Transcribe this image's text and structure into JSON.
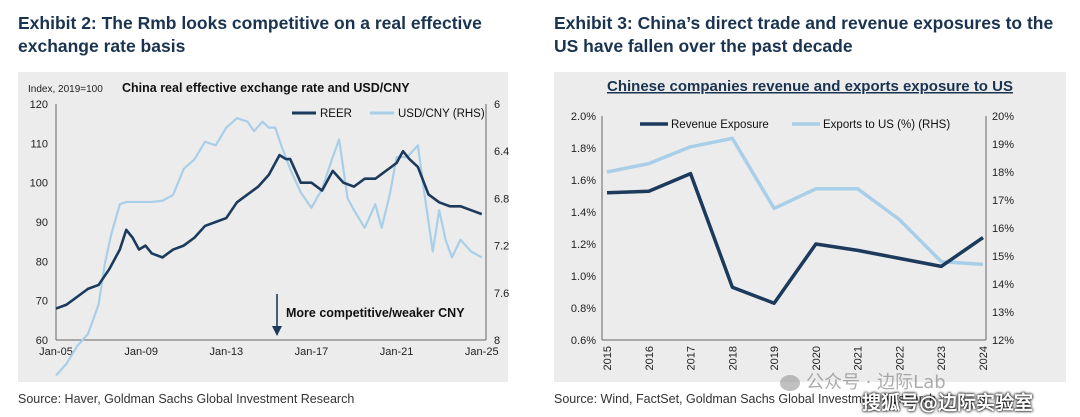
{
  "left_panel": {
    "exhibit_title": "Exhibit 2: The Rmb looks competitive on a real effective exchange rate basis",
    "source": "Source: Haver, Goldman Sachs Global Investment Research"
  },
  "right_panel": {
    "exhibit_title": "Exhibit 3: China’s direct trade and revenue exposures to the US have fallen over the past decade",
    "source": "Source: Wind, FactSet, Goldman Sachs Global Investment Research"
  },
  "watermark": {
    "text1": "公众号 · 边际Lab",
    "text2": "搜狐号@边际实验室"
  },
  "chart_data": [
    {
      "type": "line",
      "title": "China real effective exchange rate and USD/CNY",
      "ylabel": "Index, 2019=100",
      "ylim": [
        60,
        120
      ],
      "y_ticks": [
        "60",
        "70",
        "80",
        "90",
        "100",
        "110",
        "120"
      ],
      "y2lim": [
        8,
        6
      ],
      "y2_inverted": true,
      "y2_ticks": [
        "6",
        "6.4",
        "6.8",
        "7.2",
        "7.6",
        "8"
      ],
      "x_ticks": [
        "Jan-05",
        "Jan-09",
        "Jan-13",
        "Jan-17",
        "Jan-21",
        "Jan-25"
      ],
      "x_tick_values": [
        2005,
        2009,
        2013,
        2017,
        2021,
        2025
      ],
      "xlim": [
        2005,
        2025.2
      ],
      "legend_position": "top-right",
      "annotation": "More competitive/weaker CNY",
      "colors": {
        "REER": "#1b3a5c",
        "USD/CNY (RHS)": "#a9cfe8"
      },
      "series": [
        {
          "name": "REER",
          "axis": "left",
          "x": [
            2005,
            2005.5,
            2006,
            2006.5,
            2007,
            2007.5,
            2008,
            2008.3,
            2008.6,
            2008.9,
            2009.2,
            2009.5,
            2010,
            2010.5,
            2011,
            2011.5,
            2012,
            2012.5,
            2013,
            2013.5,
            2014,
            2014.5,
            2015,
            2015.5,
            2015.8,
            2016,
            2016.5,
            2017,
            2017.5,
            2018,
            2018.5,
            2019,
            2019.5,
            2020,
            2020.5,
            2021,
            2021.3,
            2021.6,
            2022,
            2022.5,
            2023,
            2023.5,
            2024,
            2024.5,
            2025
          ],
          "y": [
            68,
            69,
            71,
            73,
            74,
            78,
            83,
            88,
            86,
            83,
            84,
            82,
            81,
            83,
            84,
            86,
            89,
            90,
            91,
            95,
            97,
            99,
            102,
            107,
            106,
            106,
            100,
            100,
            98,
            103,
            100,
            99,
            101,
            101,
            103,
            105,
            108,
            106,
            104,
            97,
            95,
            94,
            94,
            93,
            92
          ]
        },
        {
          "name": "USD/CNY (RHS)",
          "axis": "right",
          "x": [
            2005,
            2005.5,
            2006,
            2006.5,
            2007,
            2007.3,
            2007.6,
            2008,
            2008.3,
            2008.6,
            2009,
            2009.5,
            2010,
            2010.5,
            2011,
            2011.5,
            2012,
            2012.5,
            2013,
            2013.5,
            2014,
            2014.3,
            2014.7,
            2015,
            2015.3,
            2015.6,
            2016,
            2016.5,
            2017,
            2017.5,
            2018,
            2018.3,
            2018.7,
            2019,
            2019.5,
            2020,
            2020.3,
            2020.7,
            2021,
            2021.5,
            2022,
            2022.3,
            2022.7,
            2023,
            2023.3,
            2023.6,
            2024,
            2024.5,
            2025
          ],
          "y": [
            8.3,
            8.2,
            8.05,
            7.95,
            7.7,
            7.35,
            7.1,
            6.85,
            6.83,
            6.83,
            6.83,
            6.83,
            6.82,
            6.77,
            6.55,
            6.47,
            6.32,
            6.35,
            6.2,
            6.12,
            6.15,
            6.23,
            6.15,
            6.2,
            6.2,
            6.36,
            6.55,
            6.75,
            6.88,
            6.72,
            6.45,
            6.3,
            6.8,
            6.9,
            7.05,
            6.85,
            7.05,
            6.75,
            6.45,
            6.45,
            6.35,
            6.75,
            7.25,
            6.9,
            7.15,
            7.3,
            7.15,
            7.25,
            7.3
          ]
        }
      ]
    },
    {
      "type": "line",
      "title": "Chinese companies revenue and exports exposure to US",
      "ylim": [
        0.6,
        2.0
      ],
      "y_ticks": [
        "0.6%",
        "0.8%",
        "1.0%",
        "1.2%",
        "1.4%",
        "1.6%",
        "1.8%",
        "2.0%"
      ],
      "y2lim": [
        12,
        20
      ],
      "y2_ticks": [
        "12%",
        "13%",
        "14%",
        "15%",
        "16%",
        "17%",
        "18%",
        "19%",
        "20%"
      ],
      "categories": [
        "2015",
        "2016",
        "2017",
        "2018",
        "2019",
        "2020",
        "2021",
        "2022",
        "2023",
        "2024"
      ],
      "legend_position": "top-center",
      "colors": {
        "Revenue Exposure": "#1b3a5c",
        "Exports to US (%) (RHS)": "#a9cfe8"
      },
      "series": [
        {
          "name": "Revenue Exposure",
          "axis": "left",
          "values": [
            1.52,
            1.53,
            1.64,
            0.93,
            0.83,
            1.2,
            1.16,
            1.11,
            1.06,
            1.24
          ]
        },
        {
          "name": "Exports to US (%) (RHS)",
          "axis": "right",
          "values": [
            18.0,
            18.3,
            18.9,
            19.2,
            16.7,
            17.4,
            17.4,
            16.3,
            14.8,
            14.7
          ]
        }
      ]
    }
  ]
}
